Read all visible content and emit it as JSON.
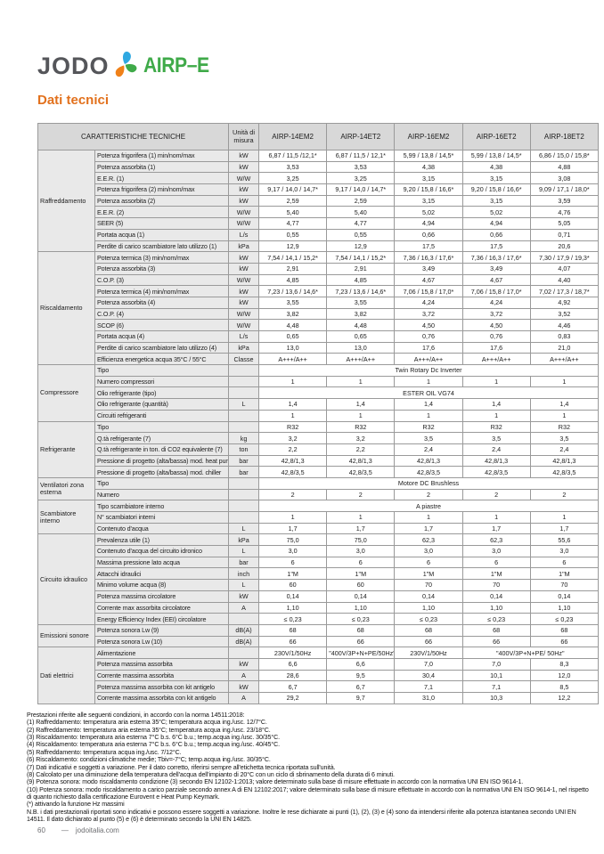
{
  "page": {
    "logo": {
      "brand": "JODO",
      "product": "AIRP–E"
    },
    "title": "Dati tecnici",
    "footer": {
      "page_number": "60",
      "separator": "—",
      "site": "jodoitalia.com"
    }
  },
  "colors": {
    "title_orange": "#e2711d",
    "brand_gray": "#55565a",
    "brand_green": "#3faa49",
    "icon_blue": "#2fa8e1",
    "icon_orange": "#f08119",
    "header_bg": "#d8d8d8",
    "label_bg": "#e9e9e9",
    "border_gray": "#9a9a9a"
  },
  "table": {
    "header": {
      "characteristics": "CARATTERISTICHE TECNICHE",
      "unit": "Unità di misura",
      "models": [
        "AIRP-14EM2",
        "AIRP-14ET2",
        "AIRP-16EM2",
        "AIRP-16ET2",
        "AIRP-18ET2"
      ]
    },
    "groups": [
      {
        "name": "Raffreddamento",
        "rows": [
          {
            "label": "Potenza frigorifera (1) min/nom/max",
            "unit": "kW",
            "values": [
              "6,87 / 11,5 /12,1*",
              "6,87 / 11,5 / 12,1*",
              "5,99 / 13,8 / 14,5*",
              "5,99 / 13,8 / 14,5*",
              "6,86 / 15,0 / 15,8*"
            ]
          },
          {
            "label": "Potenza assorbita (1)",
            "unit": "kW",
            "values": [
              "3,53",
              "3,53",
              "4,38",
              "4,38",
              "4,88"
            ]
          },
          {
            "label": "E.E.R. (1)",
            "unit": "W/W",
            "values": [
              "3,25",
              "3,25",
              "3,15",
              "3,15",
              "3,08"
            ]
          },
          {
            "label": "Potenza frigorifera (2) min/nom/max",
            "unit": "kW",
            "values": [
              "9,17 / 14,0 / 14,7*",
              "9,17 / 14,0 / 14,7*",
              "9,20 / 15,8 / 16,6*",
              "9,20 / 15,8 / 16,6*",
              "9,09 / 17,1 / 18,0*"
            ]
          },
          {
            "label": "Potenza assorbita (2)",
            "unit": "kW",
            "values": [
              "2,59",
              "2,59",
              "3,15",
              "3,15",
              "3,59"
            ]
          },
          {
            "label": "E.E.R. (2)",
            "unit": "W/W",
            "values": [
              "5,40",
              "5,40",
              "5,02",
              "5,02",
              "4,76"
            ]
          },
          {
            "label": "SEER (5)",
            "unit": "W/W",
            "values": [
              "4,77",
              "4,77",
              "4,94",
              "4,94",
              "5,05"
            ]
          },
          {
            "label": "Portata acqua (1)",
            "unit": "L/s",
            "values": [
              "0,55",
              "0,55",
              "0,66",
              "0,66",
              "0,71"
            ]
          },
          {
            "label": "Perdite di carico scambiatore lato utilizzo (1)",
            "unit": "kPa",
            "values": [
              "12,9",
              "12,9",
              "17,5",
              "17,5",
              "20,6"
            ]
          }
        ]
      },
      {
        "name": "Riscaldamento",
        "rows": [
          {
            "label": "Potenza termica (3) min/nom/max",
            "unit": "kW",
            "values": [
              "7,54 / 14,1 / 15,2*",
              "7,54 / 14,1 / 15,2*",
              "7,36 / 16,3 / 17,6*",
              "7,36 / 16,3 / 17,6*",
              "7,30 / 17,9 / 19,3*"
            ]
          },
          {
            "label": "Potenza assorbita (3)",
            "unit": "kW",
            "values": [
              "2,91",
              "2,91",
              "3,49",
              "3,49",
              "4,07"
            ]
          },
          {
            "label": "C.O.P. (3)",
            "unit": "W/W",
            "values": [
              "4,85",
              "4,85",
              "4,67",
              "4,67",
              "4,40"
            ]
          },
          {
            "label": "Potenza termica (4) min/nom/max",
            "unit": "kW",
            "values": [
              "7,23 / 13,6 / 14,6*",
              "7,23 / 13,6 / 14,6*",
              "7,06 / 15,8 / 17,0*",
              "7,06 / 15,8 / 17,0*",
              "7,02 / 17,3 / 18,7*"
            ]
          },
          {
            "label": "Potenza assorbita (4)",
            "unit": "kW",
            "values": [
              "3,55",
              "3,55",
              "4,24",
              "4,24",
              "4,92"
            ]
          },
          {
            "label": "C.O.P. (4)",
            "unit": "W/W",
            "values": [
              "3,82",
              "3,82",
              "3,72",
              "3,72",
              "3,52"
            ]
          },
          {
            "label": "SCOP (6)",
            "unit": "W/W",
            "values": [
              "4,48",
              "4,48",
              "4,50",
              "4,50",
              "4,46"
            ]
          },
          {
            "label": "Portata acqua (4)",
            "unit": "L/s",
            "values": [
              "0,65",
              "0,65",
              "0,76",
              "0,76",
              "0,83"
            ]
          },
          {
            "label": "Perdite di carico scambiatore lato utilizzo (4)",
            "unit": "kPa",
            "values": [
              "13,0",
              "13,0",
              "17,6",
              "17,6",
              "21,0"
            ]
          },
          {
            "label": "Efficienza energetica acqua 35°C / 55°C",
            "unit": "Classe",
            "values": [
              "A+++/A++",
              "A+++/A++",
              "A+++/A++",
              "A+++/A++",
              "A+++/A++"
            ]
          }
        ]
      },
      {
        "name": "Compressore",
        "rows": [
          {
            "label": "Tipo",
            "unit": "",
            "span": "Twin Rotary Dc Inverter"
          },
          {
            "label": "Numero compressori",
            "unit": "",
            "values": [
              "1",
              "1",
              "1",
              "1",
              "1"
            ]
          },
          {
            "label": "Olio refrigerante (tipo)",
            "unit": "",
            "span": "ESTER OIL VG74"
          },
          {
            "label": "Olio refrigerante (quantità)",
            "unit": "L",
            "values": [
              "1,4",
              "1,4",
              "1,4",
              "1,4",
              "1,4"
            ]
          },
          {
            "label": "Circuiti refrigeranti",
            "unit": "",
            "values": [
              "1",
              "1",
              "1",
              "1",
              "1"
            ]
          }
        ]
      },
      {
        "name": "Refrigerante",
        "rows": [
          {
            "label": "Tipo",
            "unit": "",
            "values": [
              "R32",
              "R32",
              "R32",
              "R32",
              "R32"
            ]
          },
          {
            "label": "Q.tà refrigerante (7)",
            "unit": "kg",
            "values": [
              "3,2",
              "3,2",
              "3,5",
              "3,5",
              "3,5"
            ]
          },
          {
            "label": "Q.tà refrigerante in ton. di CO2 equivalente (7)",
            "unit": "ton",
            "values": [
              "2,2",
              "2,2",
              "2,4",
              "2,4",
              "2,4"
            ]
          },
          {
            "label": "Pressione di progetto (alta/bassa) mod. heat pump",
            "unit": "bar",
            "values": [
              "42,8/1,3",
              "42,8/1,3",
              "42,8/1,3",
              "42,8/1,3",
              "42,8/1,3"
            ]
          },
          {
            "label": "Pressione di progetto (alta/bassa) mod. chiller",
            "unit": "bar",
            "values": [
              "42,8/3,5",
              "42,8/3,5",
              "42,8/3,5",
              "42,8/3,5",
              "42,8/3,5"
            ]
          }
        ]
      },
      {
        "name": "Ventilatori zona esterna",
        "rows": [
          {
            "label": "Tipo",
            "unit": "",
            "span": "Motore DC Brushless"
          },
          {
            "label": "Numero",
            "unit": "",
            "values": [
              "2",
              "2",
              "2",
              "2",
              "2"
            ]
          }
        ]
      },
      {
        "name": "Scambiatore interno",
        "rows": [
          {
            "label": "Tipo scambiatore interno",
            "unit": "",
            "span": "A piastre"
          },
          {
            "label": "N° scambiatori interni",
            "unit": "",
            "values": [
              "1",
              "1",
              "1",
              "1",
              "1"
            ]
          },
          {
            "label": "Contenuto d'acqua",
            "unit": "L",
            "values": [
              "1,7",
              "1,7",
              "1,7",
              "1,7",
              "1,7"
            ]
          }
        ]
      },
      {
        "name": "Circuito idraulico",
        "rows": [
          {
            "label": "Prevalenza utile (1)",
            "unit": "kPa",
            "values": [
              "75,0",
              "75,0",
              "62,3",
              "62,3",
              "55,6"
            ]
          },
          {
            "label": "Contenuto d'acqua del circuito idronico",
            "unit": "L",
            "values": [
              "3,0",
              "3,0",
              "3,0",
              "3,0",
              "3,0"
            ]
          },
          {
            "label": "Massima pressione lato acqua",
            "unit": "bar",
            "values": [
              "6",
              "6",
              "6",
              "6",
              "6"
            ]
          },
          {
            "label": "Attacchi idraulici",
            "unit": "inch",
            "values": [
              "1\"M",
              "1\"M",
              "1\"M",
              "1\"M",
              "1\"M"
            ]
          },
          {
            "label": "Minimo volume acqua (8)",
            "unit": "L",
            "values": [
              "60",
              "60",
              "70",
              "70",
              "70"
            ]
          },
          {
            "label": "Potenza massima circolatore",
            "unit": "kW",
            "values": [
              "0,14",
              "0,14",
              "0,14",
              "0,14",
              "0,14"
            ]
          },
          {
            "label": "Corrente max assorbita circolatore",
            "unit": "A",
            "values": [
              "1,10",
              "1,10",
              "1,10",
              "1,10",
              "1,10"
            ]
          },
          {
            "label": "Energy Efficiency Index (EEI) circolatore",
            "unit": "",
            "values": [
              "≤ 0,23",
              "≤ 0,23",
              "≤ 0,23",
              "≤ 0,23",
              "≤ 0,23"
            ]
          }
        ]
      },
      {
        "name": "Emissioni sonore",
        "rows": [
          {
            "label": "Potenza sonora Lw (9)",
            "unit": "dB(A)",
            "values": [
              "68",
              "68",
              "68",
              "68",
              "68"
            ]
          },
          {
            "label": "Potenza sonora Lw (10)",
            "unit": "dB(A)",
            "values": [
              "66",
              "66",
              "66",
              "66",
              "66"
            ]
          }
        ]
      },
      {
        "name": "Dati elettrici",
        "rows": [
          {
            "label": "Alimentazione",
            "unit": "",
            "values": [
              "230V/1/50Hz",
              "\"400V/3P+N+PE/50Hz\"",
              "230V/1/50Hz",
              {
                "text": "\"400V/3P+N+PE/ 50Hz\"",
                "colspan": 2
              }
            ]
          },
          {
            "label": "Potenza massima assorbita",
            "unit": "kW",
            "values": [
              "6,6",
              "6,6",
              "7,0",
              "7,0",
              "8,3"
            ]
          },
          {
            "label": "Corrente massima assorbita",
            "unit": "A",
            "values": [
              "28,6",
              "9,5",
              "30,4",
              "10,1",
              "12,0"
            ]
          },
          {
            "label": "Potenza massima assorbita con kit antigelo",
            "unit": "kW",
            "values": [
              "6,7",
              "6,7",
              "7,1",
              "7,1",
              "8,5"
            ]
          },
          {
            "label": "Corrente massima assorbita con kit antigelo",
            "unit": "A",
            "values": [
              "29,2",
              "9,7",
              "31,0",
              "10,3",
              "12,2"
            ]
          }
        ]
      }
    ]
  },
  "footnotes": [
    "Prestazioni riferite alle seguenti condizioni, in accordo con la norma 14511:2018:",
    "(1) Raffreddamento: temperatura aria esterna 35°C; temperatura acqua ing./usc. 12/7°C.",
    "(2) Raffreddamento: temperatura aria esterna 35°C; temperatura acqua ing./usc. 23/18°C.",
    "(3) Riscaldamento: temperatura aria esterna 7°C b.s. 6°C b.u.; temp.acqua ing./usc. 30/35°C.",
    "(4) Riscaldamento: temperatura aria esterna 7°C b.s. 6°C b.u.; temp.acqua ing./usc. 40/45°C.",
    "(5) Raffreddamento: temperatura acqua ing./usc. 7/12°C.",
    "(6) Riscaldamento: condizioni climatiche medie; Tbiv=-7°C; temp.acqua ing./usc. 30/35°C.",
    "(7) Dati indicativi e soggetti a variazione. Per il dato corretto, riferirsi sempre all'etichetta tecnica riportata sull'unità.",
    "(8) Calcolato per una diminuzione della temperatura dell'acqua dell'impianto di 20°C con un ciclo di sbrinamento della durata di 6 minuti.",
    "(9) Potenza sonora: modo riscaldamento condizione (3) secondo EN 12102-1:2013; valore determinato sulla base di misure effettuate in accordo con la normativa UNI EN ISO 9614-1.",
    "(10) Potenza sonora: modo riscaldamento a carico parziale secondo annex A di EN 12102:2017; valore determinato sulla base di misure effettuate in accordo con la normativa UNI EN ISO 9614-1, nel rispetto di quanto richiesto dalla certificazione Eurovent e Heat Pump Keymark.",
    "(*) attivando la funzione Hz massimi"
  ],
  "note": "N.B. i dati prestazionali riportati sono indicativi e possono essere soggetti a variazione. Inoltre le rese dichiarate ai punti (1), (2), (3) e (4) sono da intendersi riferite alla potenza istantanea secondo UNI EN 14511. Il dato dichiarato al punto (5) e (6) è determinato secondo la UNI EN 14825."
}
